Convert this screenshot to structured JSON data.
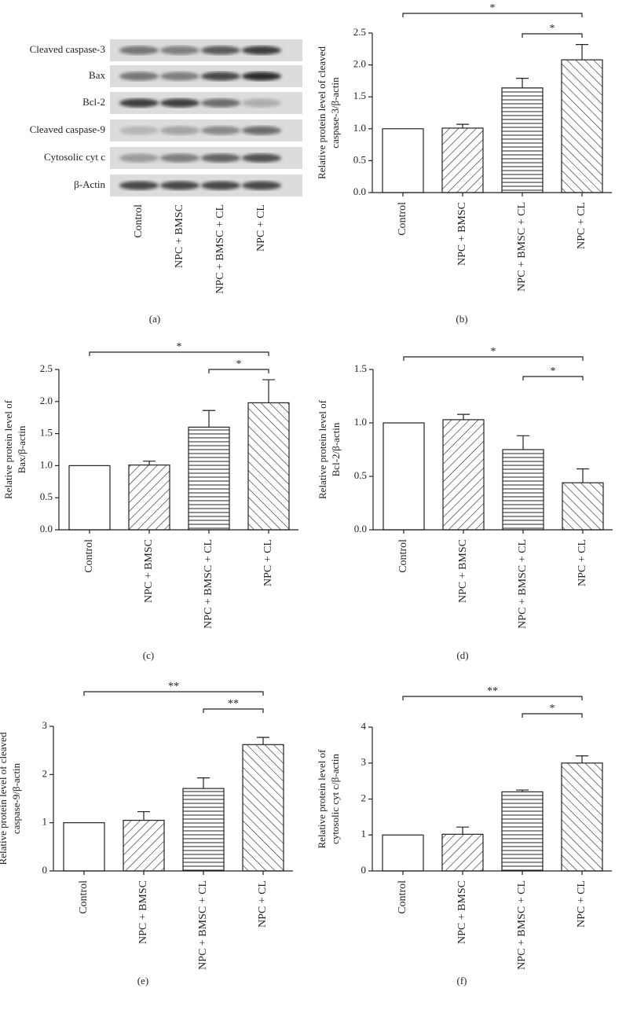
{
  "blot": {
    "panel_label": "(a)",
    "rows": [
      "Cleaved caspase-3",
      "Bax",
      "Bcl-2",
      "Cleaved caspase-9",
      "Cytosolic cyt c",
      "β-Actin"
    ],
    "lanes": [
      "Control",
      "NPC + BMSC",
      "NPC + BMSC + CL",
      "NPC + CL"
    ]
  },
  "chart_data": [
    {
      "type": "bar",
      "panel_label": "(b)",
      "ylabel": [
        "Relative protein level of cleaved",
        "caspase-3/β-actin"
      ],
      "categories": [
        "Control",
        "NPC + BMSC",
        "NPC + BMSC + CL",
        "NPC + CL"
      ],
      "values": [
        1.0,
        1.01,
        1.64,
        2.08
      ],
      "errors": [
        0,
        0.06,
        0.15,
        0.24
      ],
      "hatches": [
        "none",
        "forward",
        "horizontal",
        "back"
      ],
      "ylim": [
        0,
        2.5
      ],
      "yticks": [
        {
          "value": 0,
          "label": "0.0"
        },
        0.5,
        {
          "value": 1,
          "label": "1.0"
        },
        1.5,
        {
          "value": 2,
          "label": "2.0"
        },
        2.5
      ],
      "significance": [
        {
          "from": 0,
          "to": 3,
          "label": "*"
        },
        {
          "from": 2,
          "to": 3,
          "label": "*"
        }
      ]
    },
    {
      "type": "bar",
      "panel_label": "(c)",
      "ylabel": [
        "Relative protein level of",
        "Bax/β-actin"
      ],
      "categories": [
        "Control",
        "NPC + BMSC",
        "NPC + BMSC + CL",
        "NPC + CL"
      ],
      "values": [
        1.0,
        1.01,
        1.6,
        1.98
      ],
      "errors": [
        0,
        0.06,
        0.26,
        0.36
      ],
      "hatches": [
        "none",
        "forward",
        "horizontal",
        "back"
      ],
      "ylim": [
        0,
        2.5
      ],
      "yticks": [
        {
          "value": 0,
          "label": "0.0"
        },
        0.5,
        {
          "value": 1,
          "label": "1.0"
        },
        1.5,
        {
          "value": 2,
          "label": "2.0"
        },
        2.5
      ],
      "significance": [
        {
          "from": 0,
          "to": 3,
          "label": "*"
        },
        {
          "from": 2,
          "to": 3,
          "label": "*"
        }
      ]
    },
    {
      "type": "bar",
      "panel_label": "(d)",
      "ylabel": [
        "Relative protein level of",
        "Bcl-2/β-actin"
      ],
      "categories": [
        "Control",
        "NPC + BMSC",
        "NPC + BMSC + CL",
        "NPC + CL"
      ],
      "values": [
        1.0,
        1.03,
        0.75,
        0.44
      ],
      "errors": [
        0,
        0.05,
        0.13,
        0.13
      ],
      "hatches": [
        "none",
        "forward",
        "horizontal",
        "back"
      ],
      "ylim": [
        0,
        1.5
      ],
      "yticks": [
        {
          "value": 0,
          "label": "0.0"
        },
        0.5,
        {
          "value": 1,
          "label": "1.0"
        },
        1.5
      ],
      "significance": [
        {
          "from": 0,
          "to": 3,
          "label": "*"
        },
        {
          "from": 2,
          "to": 3,
          "label": "*"
        }
      ]
    },
    {
      "type": "bar",
      "panel_label": "(e)",
      "ylabel": [
        "Relative protein level of cleaved",
        "caspase-9/β-actin"
      ],
      "categories": [
        "Control",
        "NPC + BMSC",
        "NPC + BMSC + CL",
        "NPC + CL"
      ],
      "values": [
        1.0,
        1.05,
        1.71,
        2.62
      ],
      "errors": [
        0,
        0.18,
        0.22,
        0.15
      ],
      "hatches": [
        "none",
        "forward",
        "horizontal",
        "back"
      ],
      "ylim": [
        0,
        3
      ],
      "yticks": [
        0,
        1,
        2,
        3
      ],
      "significance": [
        {
          "from": 0,
          "to": 3,
          "label": "**"
        },
        {
          "from": 2,
          "to": 3,
          "label": "**"
        }
      ]
    },
    {
      "type": "bar",
      "panel_label": "(f)",
      "ylabel": [
        "Relative protein level of",
        "cytosolic cyt c/β-actin"
      ],
      "categories": [
        "Control",
        "NPC + BMSC",
        "NPC + BMSC + CL",
        "NPC + CL"
      ],
      "values": [
        1.0,
        1.02,
        2.2,
        3.0
      ],
      "errors": [
        0,
        0.2,
        0.05,
        0.2
      ],
      "hatches": [
        "none",
        "forward",
        "horizontal",
        "back"
      ],
      "ylim": [
        0,
        4
      ],
      "yticks": [
        0,
        1,
        2,
        3,
        4
      ],
      "significance": [
        {
          "from": 0,
          "to": 3,
          "label": "**"
        },
        {
          "from": 2,
          "to": 3,
          "label": "*"
        }
      ]
    }
  ]
}
